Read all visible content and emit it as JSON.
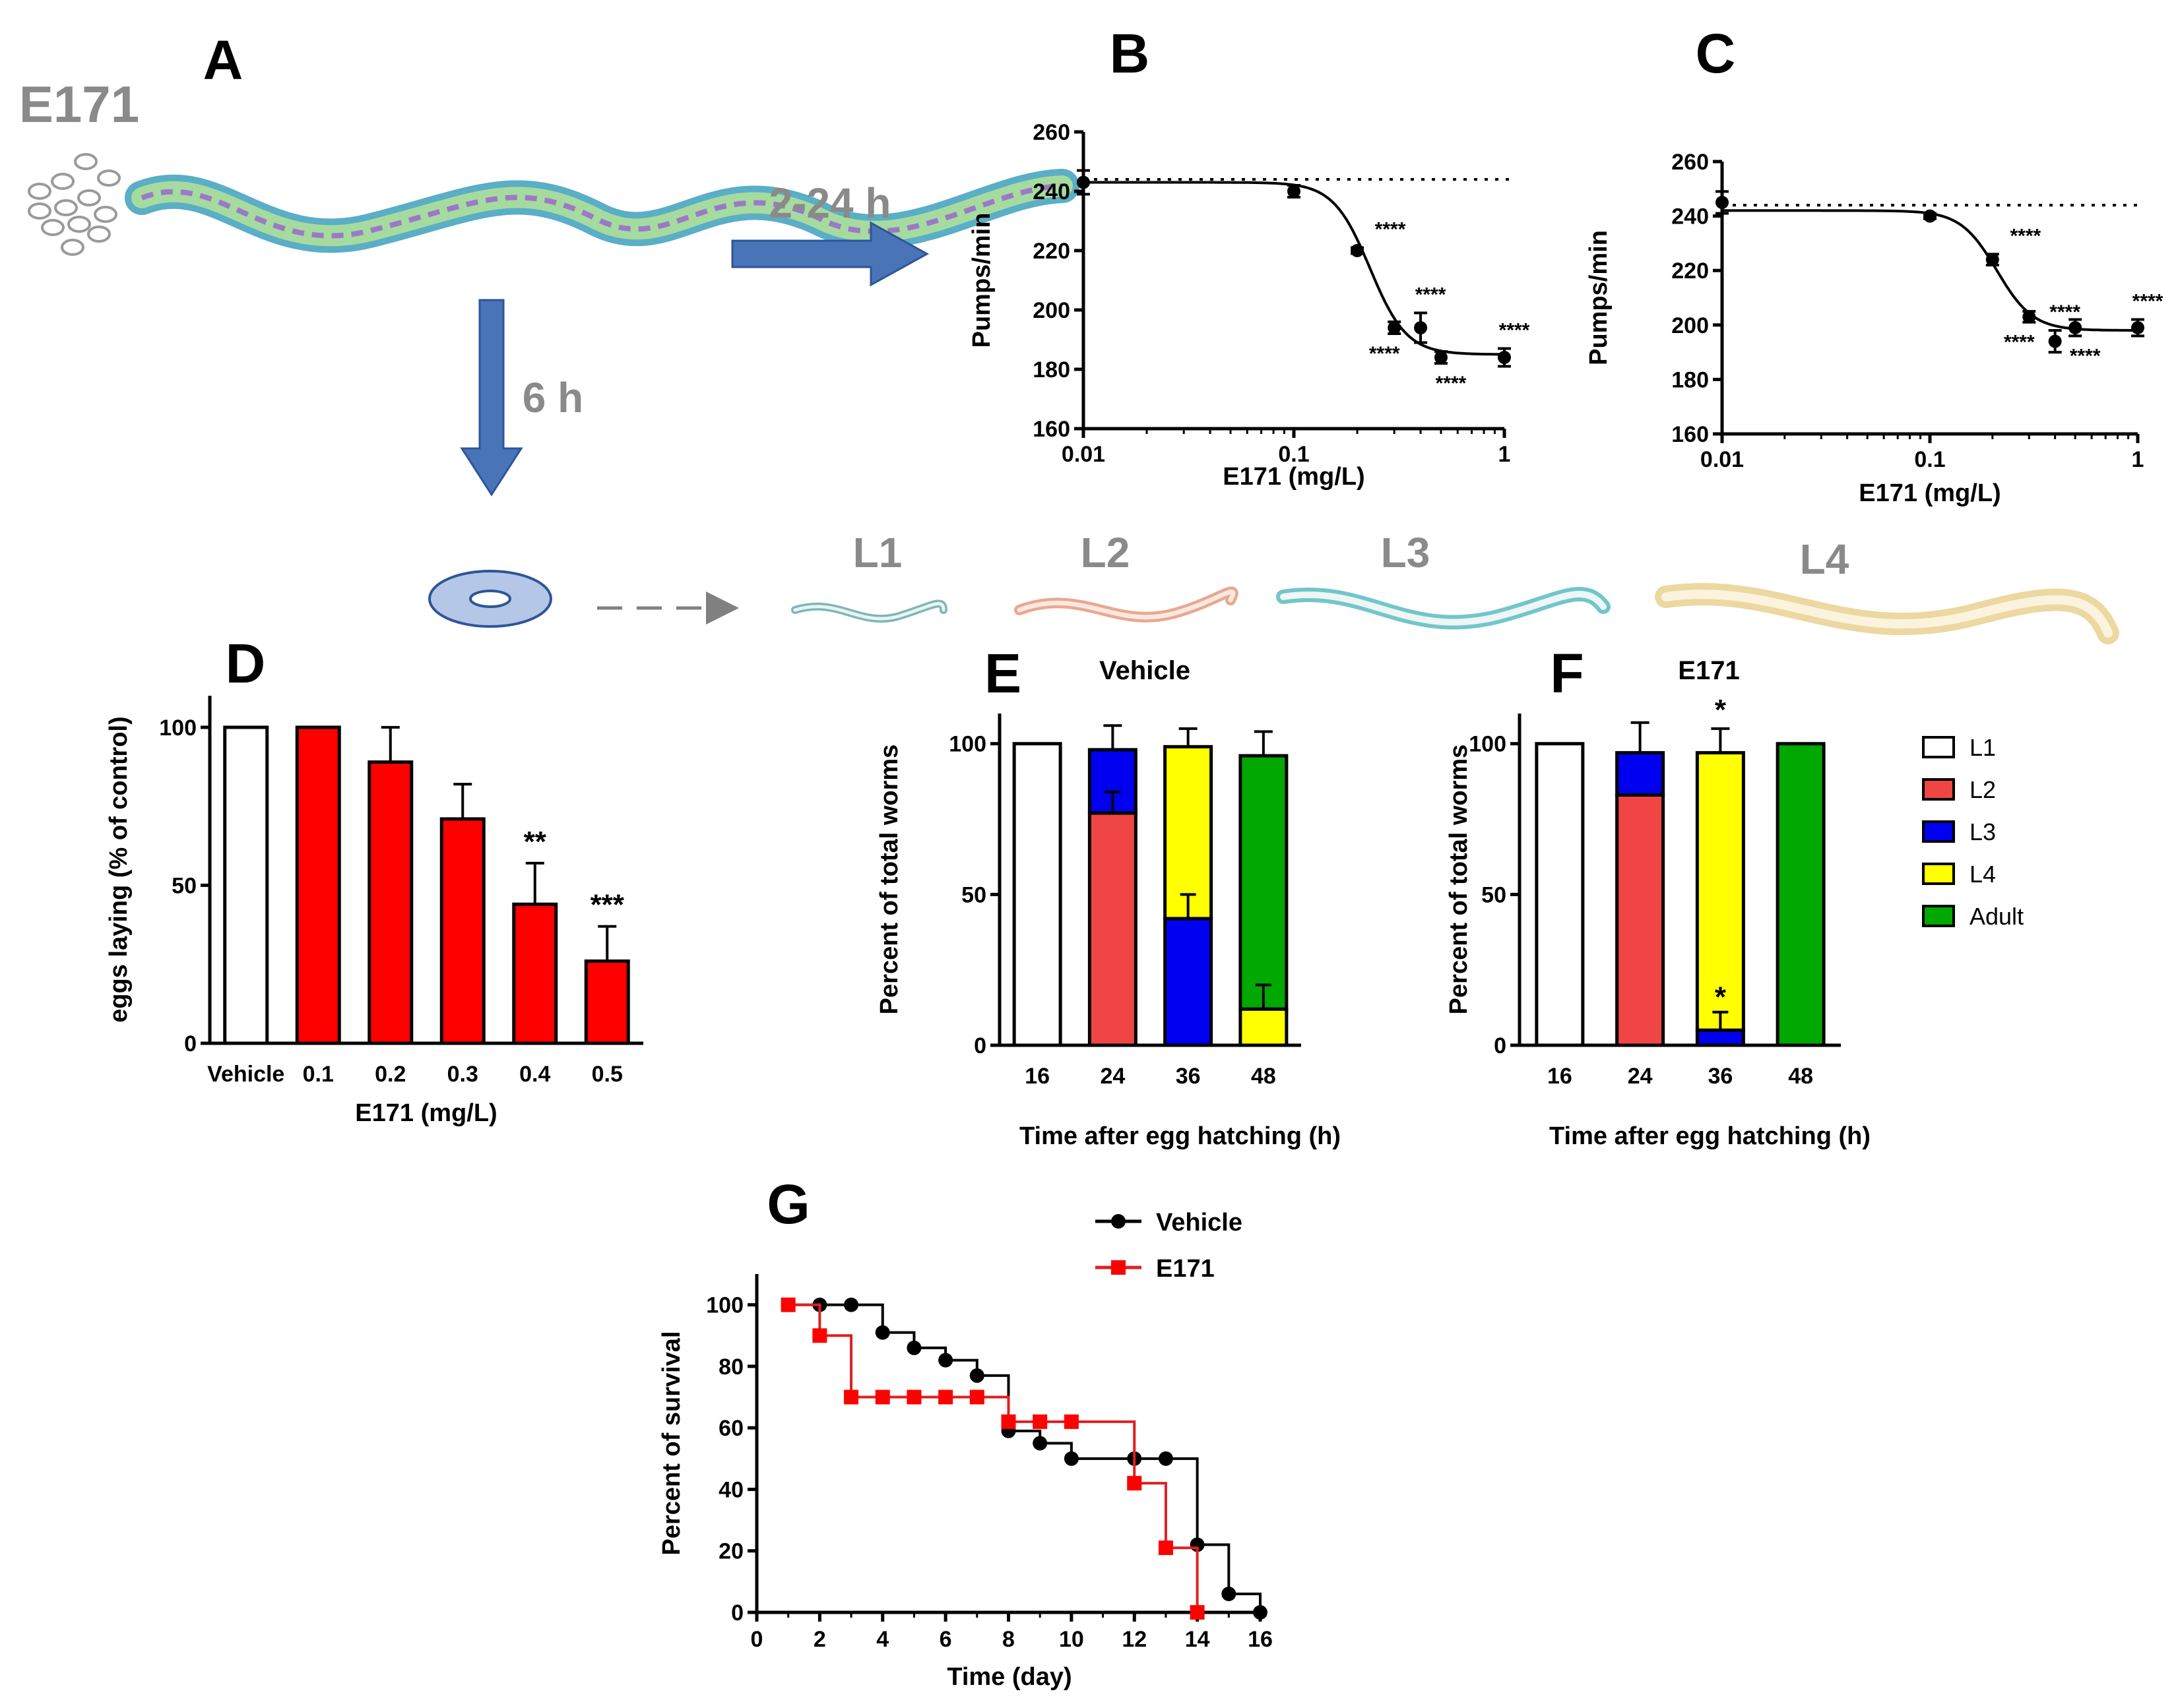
{
  "panel_labels": {
    "a": "A",
    "b": "B",
    "c": "C",
    "d": "D",
    "e": "E",
    "f": "F",
    "g": "G"
  },
  "schematic": {
    "compound": "E171",
    "arrow_right_label": "2-24 h",
    "arrow_down_label": "6 h",
    "stages": [
      "L1",
      "L2",
      "L3",
      "L4"
    ]
  },
  "colors": {
    "L1": "#ffffff",
    "L2": "#f04545",
    "L3": "#0000f0",
    "L4": "#ffff00",
    "Adult": "#00a800",
    "red": "#ff0000",
    "e171_line": "#e02020",
    "arrow": "#4a74b8",
    "gray": "#8a8a8a"
  },
  "chart_data": [
    {
      "id": "B",
      "type": "scatter",
      "title": "",
      "xlabel": "E171  (mg/L)",
      "ylabel": "Pumps/min",
      "xscale": "log",
      "xlim": [
        0.01,
        1
      ],
      "ylim": [
        160,
        260
      ],
      "xticks": [
        "0.01",
        "0.1",
        "1"
      ],
      "yticks": [
        "160",
        "180",
        "200",
        "220",
        "240",
        "260"
      ],
      "baseline": 244,
      "points": [
        {
          "x": 0.01,
          "y": 243,
          "err": 4,
          "sig": ""
        },
        {
          "x": 0.1,
          "y": 240,
          "err": 2,
          "sig": ""
        },
        {
          "x": 0.2,
          "y": 220,
          "err": 1,
          "sig": "****"
        },
        {
          "x": 0.3,
          "y": 194,
          "err": 2,
          "sig": "****"
        },
        {
          "x": 0.4,
          "y": 194,
          "err": 5,
          "sig": "****"
        },
        {
          "x": 0.5,
          "y": 184,
          "err": 2,
          "sig": "****"
        },
        {
          "x": 1,
          "y": 184,
          "err": 3,
          "sig": "****"
        }
      ],
      "fit": {
        "bottom": 185,
        "top": 243,
        "ec50": 0.23,
        "hill": 5
      }
    },
    {
      "id": "C",
      "type": "scatter",
      "title": "",
      "xlabel": "E171 (mg/L)",
      "ylabel": "Pumps/min",
      "xscale": "log",
      "xlim": [
        0.01,
        1
      ],
      "ylim": [
        160,
        260
      ],
      "xticks": [
        "0.01",
        "0.1",
        "1"
      ],
      "yticks": [
        "160",
        "180",
        "200",
        "220",
        "240",
        "260"
      ],
      "baseline": 244,
      "points": [
        {
          "x": 0.01,
          "y": 245,
          "err": 4,
          "sig": ""
        },
        {
          "x": 0.1,
          "y": 240,
          "err": 1,
          "sig": ""
        },
        {
          "x": 0.2,
          "y": 224,
          "err": 2,
          "sig": "****"
        },
        {
          "x": 0.3,
          "y": 203,
          "err": 2,
          "sig": "****"
        },
        {
          "x": 0.4,
          "y": 194,
          "err": 4,
          "sig": "****"
        },
        {
          "x": 0.5,
          "y": 199,
          "err": 3,
          "sig": "****"
        },
        {
          "x": 1,
          "y": 199,
          "err": 3,
          "sig": "****"
        }
      ],
      "fit": {
        "bottom": 198,
        "top": 242,
        "ec50": 0.21,
        "hill": 5
      }
    },
    {
      "id": "D",
      "type": "bar",
      "title": "",
      "xlabel": "E171 (mg/L)",
      "ylabel": "eggs laying (% of control)",
      "ylim": [
        0,
        110
      ],
      "yticks": [
        "0",
        "50",
        "100"
      ],
      "categories": [
        "Vehicle",
        "0.1",
        "0.2",
        "0.3",
        "0.4",
        "0.5"
      ],
      "values": [
        100,
        100,
        89,
        71,
        44,
        26
      ],
      "errors": [
        0,
        0,
        11,
        11,
        13,
        11
      ],
      "sig": [
        "",
        "",
        "",
        "",
        "**",
        "***"
      ]
    },
    {
      "id": "E",
      "type": "bar",
      "title": "Vehicle",
      "xlabel": "Time after egg hatching (h)",
      "ylabel": "Percent of total worms",
      "ylim": [
        0,
        110
      ],
      "yticks": [
        "0",
        "50",
        "100"
      ],
      "categories": [
        "16",
        "24",
        "36",
        "48"
      ],
      "series": [
        {
          "name": "L1",
          "values": [
            100,
            0,
            0,
            0
          ]
        },
        {
          "name": "L2",
          "values": [
            0,
            77,
            0,
            0
          ]
        },
        {
          "name": "L3",
          "values": [
            0,
            21,
            42,
            0
          ]
        },
        {
          "name": "L4",
          "values": [
            0,
            0,
            57,
            12
          ]
        },
        {
          "name": "Adult",
          "values": [
            0,
            0,
            0,
            84
          ]
        }
      ],
      "errors": [
        0,
        8,
        6,
        8
      ],
      "inner_errors": [
        0,
        7,
        8,
        8
      ],
      "sig_top": [
        "",
        "",
        "",
        ""
      ],
      "sig_inner": [
        "",
        "",
        "",
        ""
      ]
    },
    {
      "id": "F",
      "type": "bar",
      "title": "E171",
      "xlabel": "Time after egg hatching (h)",
      "ylabel": "Percent of total worms",
      "ylim": [
        0,
        110
      ],
      "yticks": [
        "0",
        "50",
        "100"
      ],
      "categories": [
        "16",
        "24",
        "36",
        "48"
      ],
      "series": [
        {
          "name": "L1",
          "values": [
            100,
            0,
            0,
            0
          ]
        },
        {
          "name": "L2",
          "values": [
            0,
            83,
            0,
            0
          ]
        },
        {
          "name": "L3",
          "values": [
            0,
            14,
            5,
            0
          ]
        },
        {
          "name": "L4",
          "values": [
            0,
            0,
            92,
            0
          ]
        },
        {
          "name": "Adult",
          "values": [
            0,
            0,
            0,
            100
          ]
        }
      ],
      "errors": [
        0,
        10,
        8,
        0
      ],
      "inner_errors": [
        0,
        0,
        6,
        0
      ],
      "sig_top": [
        "",
        "",
        "*",
        ""
      ],
      "sig_inner": [
        "",
        "",
        "*",
        ""
      ]
    },
    {
      "id": "G",
      "type": "line",
      "title": "",
      "xlabel": "Time (day)",
      "ylabel": "Percent of survival",
      "xlim": [
        0,
        16
      ],
      "ylim": [
        0,
        110
      ],
      "xticks": [
        "0",
        "2",
        "4",
        "6",
        "8",
        "10",
        "12",
        "14",
        "16"
      ],
      "yticks": [
        "0",
        "20",
        "40",
        "60",
        "80",
        "100"
      ],
      "series": [
        {
          "name": "Vehicle",
          "x": [
            1,
            2,
            3,
            4,
            5,
            6,
            7,
            8,
            9,
            10,
            12,
            13,
            14,
            15,
            16
          ],
          "y": [
            100,
            100,
            100,
            91,
            86,
            82,
            77,
            59,
            55,
            50,
            50,
            50,
            22,
            6,
            0
          ]
        },
        {
          "name": "E171",
          "x": [
            1,
            2,
            3,
            4,
            5,
            6,
            7,
            8,
            9,
            10,
            12,
            13,
            14
          ],
          "y": [
            100,
            90,
            70,
            70,
            70,
            70,
            70,
            62,
            62,
            62,
            42,
            21,
            0
          ]
        }
      ]
    }
  ],
  "legend_stages": [
    "L1",
    "L2",
    "L3",
    "L4",
    "Adult"
  ]
}
